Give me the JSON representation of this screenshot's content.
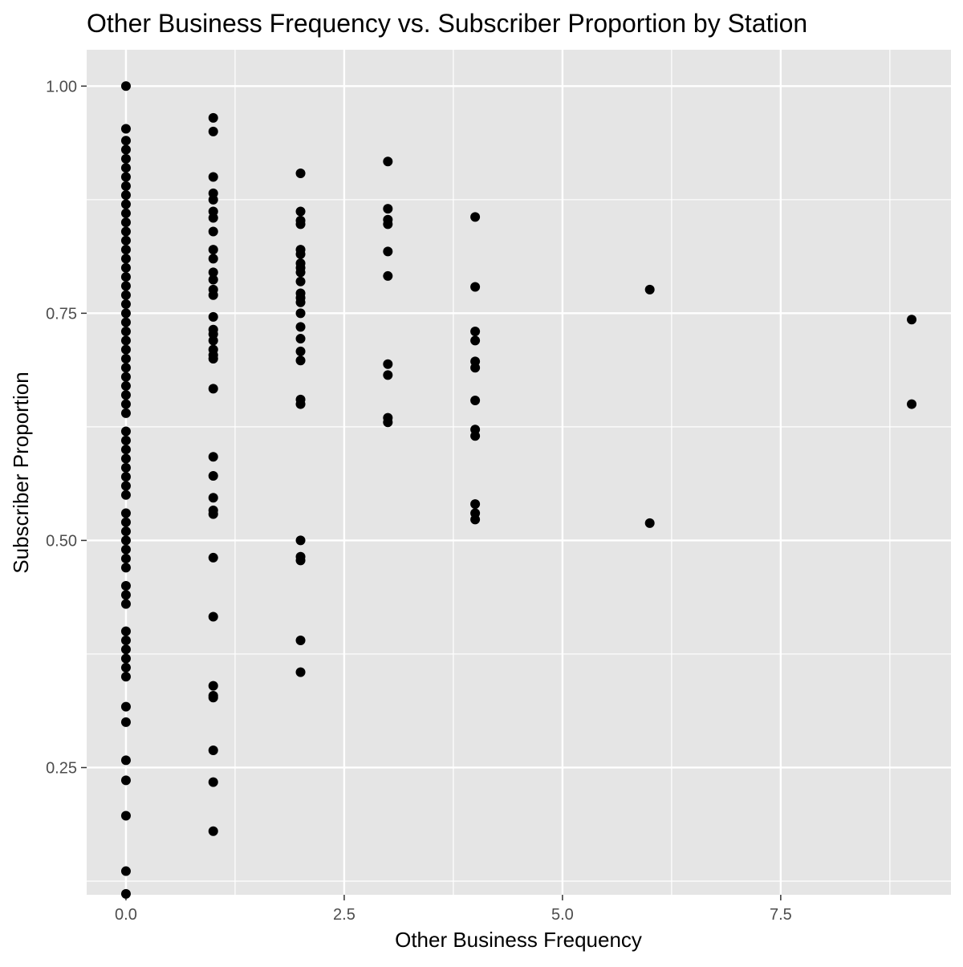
{
  "chart_data": {
    "type": "scatter",
    "title": "Other Business Frequency vs. Subscriber Proportion by Station",
    "xlabel": "Other Business Frequency",
    "ylabel": "Subscriber Proportion",
    "xlim": [
      -0.45,
      9.45
    ],
    "ylim": [
      0.11,
      1.04
    ],
    "x_ticks": [
      0,
      2.5,
      5,
      7.5
    ],
    "x_tick_labels": [
      "0.0",
      "2.5",
      "5.0",
      "7.5"
    ],
    "y_ticks": [
      0.25,
      0.5,
      0.75,
      1.0
    ],
    "y_tick_labels": [
      "0.25",
      "0.50",
      "0.75",
      "1.00"
    ],
    "grid": true,
    "legend": "none",
    "colors": {
      "panel": "#e5e5e5",
      "grid": "#ffffff",
      "point": "#000000",
      "text": "#000000",
      "tick_text": "#4d4d4d"
    },
    "series": [
      {
        "points": [
          [
            0,
            1.0
          ],
          [
            0,
            0.953
          ],
          [
            0,
            0.94
          ],
          [
            0,
            0.93
          ],
          [
            0,
            0.92
          ],
          [
            0,
            0.91
          ],
          [
            0,
            0.9
          ],
          [
            0,
            0.89
          ],
          [
            0,
            0.88
          ],
          [
            0,
            0.87
          ],
          [
            0,
            0.86
          ],
          [
            0,
            0.85
          ],
          [
            0,
            0.84
          ],
          [
            0,
            0.83
          ],
          [
            0,
            0.82
          ],
          [
            0,
            0.81
          ],
          [
            0,
            0.8
          ],
          [
            0,
            0.79
          ],
          [
            0,
            0.78
          ],
          [
            0,
            0.77
          ],
          [
            0,
            0.76
          ],
          [
            0,
            0.75
          ],
          [
            0,
            0.74
          ],
          [
            0,
            0.73
          ],
          [
            0,
            0.72
          ],
          [
            0,
            0.71
          ],
          [
            0,
            0.7
          ],
          [
            0,
            0.69
          ],
          [
            0,
            0.68
          ],
          [
            0,
            0.67
          ],
          [
            0,
            0.66
          ],
          [
            0,
            0.65
          ],
          [
            0,
            0.64
          ],
          [
            0,
            0.62
          ],
          [
            0,
            0.61
          ],
          [
            0,
            0.6
          ],
          [
            0,
            0.59
          ],
          [
            0,
            0.58
          ],
          [
            0,
            0.57
          ],
          [
            0,
            0.56
          ],
          [
            0,
            0.55
          ],
          [
            0,
            0.53
          ],
          [
            0,
            0.52
          ],
          [
            0,
            0.51
          ],
          [
            0,
            0.5
          ],
          [
            0,
            0.49
          ],
          [
            0,
            0.48
          ],
          [
            0,
            0.47
          ],
          [
            0,
            0.45
          ],
          [
            0,
            0.44
          ],
          [
            0,
            0.43
          ],
          [
            0,
            0.4
          ],
          [
            0,
            0.39
          ],
          [
            0,
            0.38
          ],
          [
            0,
            0.37
          ],
          [
            0,
            0.36
          ],
          [
            0,
            0.35
          ],
          [
            0,
            0.317
          ],
          [
            0,
            0.3
          ],
          [
            0,
            0.258
          ],
          [
            0,
            0.236
          ],
          [
            0,
            0.197
          ],
          [
            0,
            0.136
          ],
          [
            0,
            0.111
          ],
          [
            1,
            0.965
          ],
          [
            1,
            0.95
          ],
          [
            1,
            0.9
          ],
          [
            1,
            0.882
          ],
          [
            1,
            0.875
          ],
          [
            1,
            0.862
          ],
          [
            1,
            0.855
          ],
          [
            1,
            0.84
          ],
          [
            1,
            0.82
          ],
          [
            1,
            0.81
          ],
          [
            1,
            0.795
          ],
          [
            1,
            0.787
          ],
          [
            1,
            0.776
          ],
          [
            1,
            0.77
          ],
          [
            1,
            0.746
          ],
          [
            1,
            0.732
          ],
          [
            1,
            0.727
          ],
          [
            1,
            0.72
          ],
          [
            1,
            0.71
          ],
          [
            1,
            0.704
          ],
          [
            1,
            0.7
          ],
          [
            1,
            0.667
          ],
          [
            1,
            0.592
          ],
          [
            1,
            0.571
          ],
          [
            1,
            0.547
          ],
          [
            1,
            0.533
          ],
          [
            1,
            0.529
          ],
          [
            1,
            0.481
          ],
          [
            1,
            0.416
          ],
          [
            1,
            0.34
          ],
          [
            1,
            0.329
          ],
          [
            1,
            0.327
          ],
          [
            1,
            0.269
          ],
          [
            1,
            0.234
          ],
          [
            1,
            0.18
          ],
          [
            2,
            0.904
          ],
          [
            2,
            0.862
          ],
          [
            2,
            0.852
          ],
          [
            2,
            0.848
          ],
          [
            2,
            0.82
          ],
          [
            2,
            0.815
          ],
          [
            2,
            0.805
          ],
          [
            2,
            0.8
          ],
          [
            2,
            0.795
          ],
          [
            2,
            0.785
          ],
          [
            2,
            0.772
          ],
          [
            2,
            0.767
          ],
          [
            2,
            0.762
          ],
          [
            2,
            0.75
          ],
          [
            2,
            0.735
          ],
          [
            2,
            0.722
          ],
          [
            2,
            0.708
          ],
          [
            2,
            0.698
          ],
          [
            2,
            0.655
          ],
          [
            2,
            0.65
          ],
          [
            2,
            0.5
          ],
          [
            2,
            0.482
          ],
          [
            2,
            0.478
          ],
          [
            2,
            0.39
          ],
          [
            2,
            0.355
          ],
          [
            3,
            0.917
          ],
          [
            3,
            0.865
          ],
          [
            3,
            0.853
          ],
          [
            3,
            0.848
          ],
          [
            3,
            0.818
          ],
          [
            3,
            0.791
          ],
          [
            3,
            0.694
          ],
          [
            3,
            0.682
          ],
          [
            3,
            0.635
          ],
          [
            3,
            0.63
          ],
          [
            4,
            0.856
          ],
          [
            4,
            0.779
          ],
          [
            4,
            0.73
          ],
          [
            4,
            0.72
          ],
          [
            4,
            0.697
          ],
          [
            4,
            0.69
          ],
          [
            4,
            0.654
          ],
          [
            4,
            0.622
          ],
          [
            4,
            0.615
          ],
          [
            4,
            0.54
          ],
          [
            4,
            0.53
          ],
          [
            4,
            0.523
          ],
          [
            6,
            0.776
          ],
          [
            6,
            0.519
          ],
          [
            9,
            0.743
          ],
          [
            9,
            0.65
          ]
        ]
      }
    ]
  }
}
